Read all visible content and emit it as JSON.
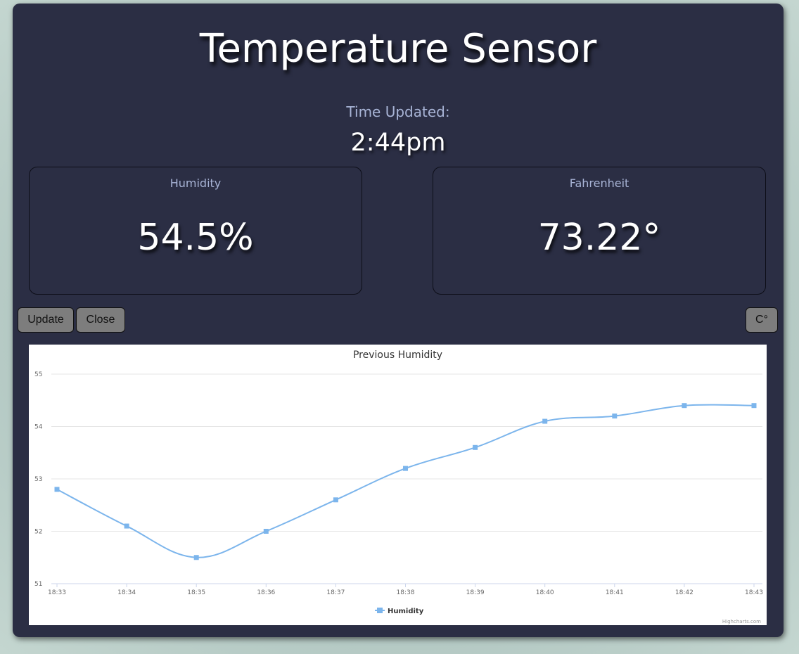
{
  "header": {
    "title": "Temperature Sensor"
  },
  "time": {
    "label": "Time Updated:",
    "value": "2:44pm"
  },
  "cards": {
    "humidity": {
      "label": "Humidity",
      "value": "54.5%"
    },
    "fahrenheit": {
      "label": "Fahrenheit",
      "value": "73.22°"
    }
  },
  "buttons": {
    "update": "Update",
    "close": "Close",
    "unit_toggle": "C°"
  },
  "chart_data": {
    "type": "line",
    "title": "Previous Humidity",
    "xlabel": "",
    "ylabel": "",
    "categories": [
      "18:33",
      "18:34",
      "18:35",
      "18:36",
      "18:37",
      "18:38",
      "18:39",
      "18:40",
      "18:41",
      "18:42",
      "18:43"
    ],
    "series": [
      {
        "name": "Humidity",
        "values": [
          52.8,
          52.1,
          51.5,
          52.0,
          52.6,
          53.2,
          53.6,
          54.1,
          54.2,
          54.4,
          54.4
        ]
      }
    ],
    "ylim": [
      51,
      55
    ],
    "yticks": [
      51,
      52,
      53,
      54,
      55
    ],
    "grid": true,
    "legend": "bottom-center",
    "line_color": "#7cb5ec",
    "credits": "Highcharts.com"
  },
  "colors": {
    "panel": "#2b2e44",
    "accent_text": "#a8b4d6",
    "button": "#7d7d7d"
  }
}
